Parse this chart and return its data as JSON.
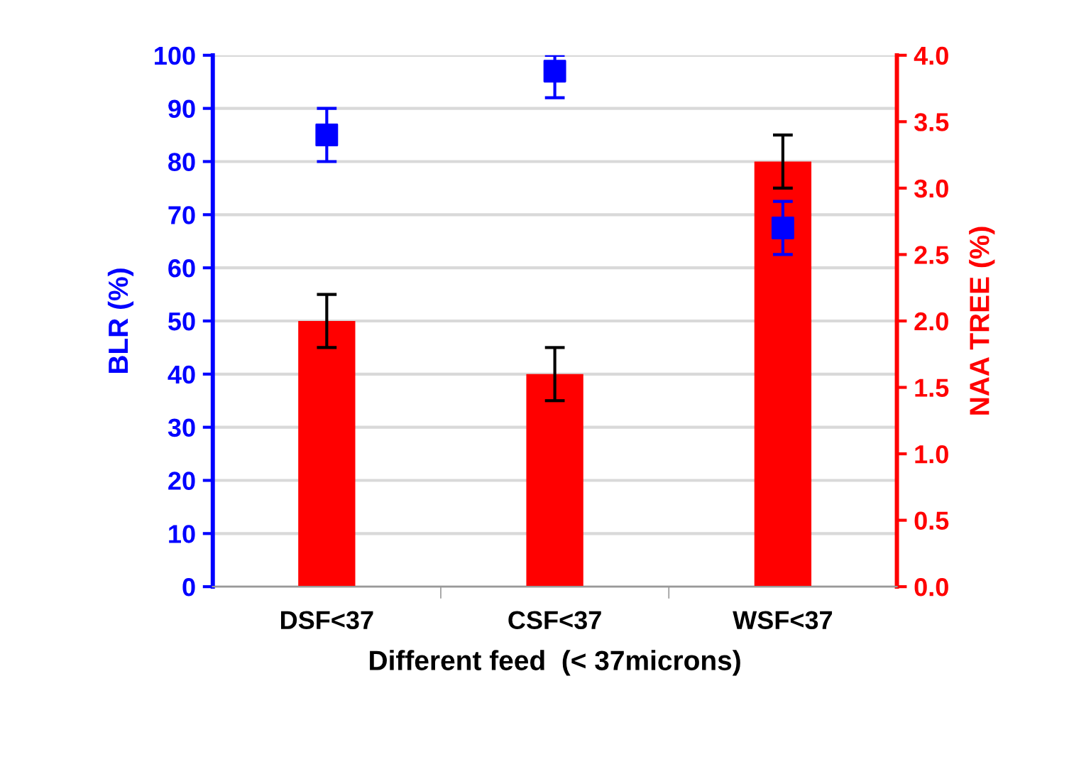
{
  "chart_data": {
    "type": "bar",
    "categories": [
      "DSF<37",
      "CSF<37",
      "WSF<37"
    ],
    "xlabel": "Different feed  (< 37microns)",
    "ylabel": "BLR (%)",
    "y2label": "NAA TREE (%)",
    "series": [
      {
        "axis": "y2",
        "color": "#ff0000",
        "values": [
          2.0,
          1.6,
          3.2
        ],
        "errors": [
          0.2,
          0.2,
          0.2
        ]
      },
      {
        "type": "scatter",
        "axis": "y",
        "color": "#0000ff",
        "marker": "square",
        "values": [
          85,
          97,
          67.5
        ],
        "errors": [
          5,
          [
            92,
            100
          ],
          5
        ]
      }
    ],
    "ylim": [
      0,
      100
    ],
    "yticks": [
      0,
      10,
      20,
      30,
      40,
      50,
      60,
      70,
      80,
      90,
      100
    ],
    "y2lim": [
      0,
      4
    ],
    "y2ticks": [
      {
        "value": 0,
        "label": "0.0"
      },
      {
        "value": 0.5,
        "label": "0.5"
      },
      {
        "value": 1,
        "label": "1.0"
      },
      {
        "value": 1.5,
        "label": "1.5"
      },
      {
        "value": 2,
        "label": "2.0"
      },
      {
        "value": 2.5,
        "label": "2.5"
      },
      {
        "value": 3,
        "label": "3.0"
      },
      {
        "value": 3.5,
        "label": "3.5"
      },
      {
        "value": 4,
        "label": "4.0"
      }
    ],
    "grid": "y",
    "legend": false
  }
}
